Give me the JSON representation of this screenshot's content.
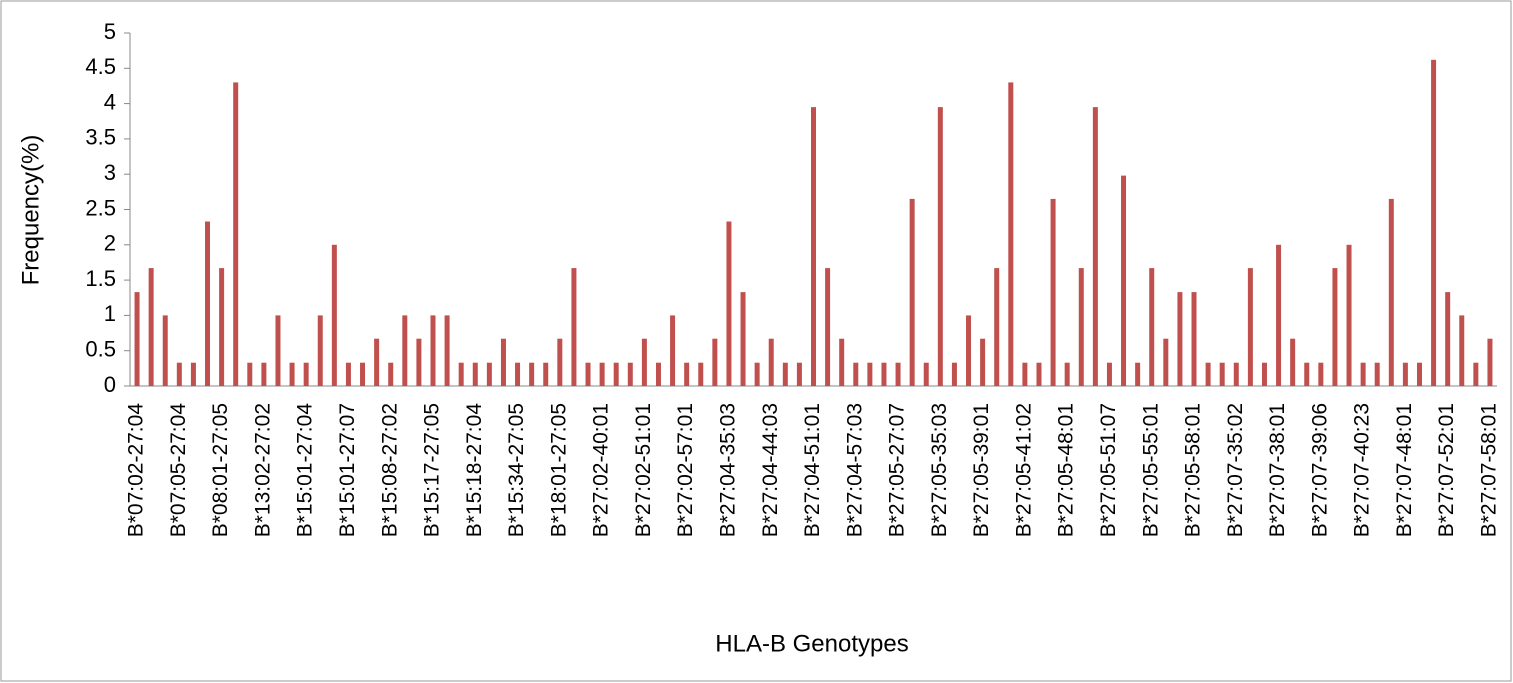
{
  "chart_data": {
    "type": "bar",
    "x_label": "HLA-B Genotypes",
    "y_label": "Frequency(%)",
    "categories": [
      "B*07:02-27:04",
      null,
      null,
      "B*07:05-27:04",
      null,
      null,
      "B*08:01-27:05",
      null,
      null,
      "B*13:02-27:02",
      null,
      null,
      "B*15:01-27:04",
      null,
      null,
      "B*15:01-27:07",
      null,
      null,
      "B*15:08-27:02",
      null,
      null,
      "B*15:17-27:05",
      null,
      null,
      "B*15:18-27:04",
      null,
      null,
      "B*15:34-27:05",
      null,
      null,
      "B*18:01-27:05",
      null,
      null,
      "B*27:02-40:01",
      null,
      null,
      "B*27:02-51:01",
      null,
      null,
      "B*27:02-57:01",
      null,
      null,
      "B*27:04-35:03",
      null,
      null,
      "B*27:04-44:03",
      null,
      null,
      "B*27:04-51:01",
      null,
      null,
      "B*27:04-57:03",
      null,
      null,
      "B*27:05-27:07",
      null,
      null,
      "B*27:05-35:03",
      null,
      null,
      "B*27:05-39:01",
      null,
      null,
      "B*27:05-41:02",
      null,
      null,
      "B*27:05-48:01",
      null,
      null,
      "B*27:05-51:07",
      null,
      null,
      "B*27:05-55:01",
      null,
      null,
      "B*27:05-58:01",
      null,
      null,
      "B*27:07-35:02",
      null,
      null,
      "B*27:07-38:01",
      null,
      null,
      "B*27:07-39:06",
      null,
      null,
      "B*27:07-40:23",
      null,
      null,
      "B*27:07-48:01",
      null,
      null,
      "B*27:07-52:01",
      null,
      null,
      "B*27:07-58:01"
    ],
    "values": [
      1.33,
      1.67,
      1,
      0.33,
      0.33,
      2.33,
      1.67,
      4.3,
      0.33,
      0.33,
      1,
      0.33,
      0.33,
      1,
      2,
      0.33,
      0.33,
      0.67,
      0.33,
      1,
      0.67,
      1,
      1,
      0.33,
      0.33,
      0.33,
      0.67,
      0.33,
      0.33,
      0.33,
      0.67,
      1.67,
      0.33,
      0.33,
      0.33,
      0.33,
      0.67,
      0.33,
      1,
      0.33,
      0.33,
      0.67,
      2.33,
      1.33,
      0.33,
      0.67,
      0.33,
      0.33,
      3.95,
      1.67,
      0.67,
      0.33,
      0.33,
      0.33,
      0.33,
      2.65,
      0.33,
      3.95,
      0.33,
      1,
      0.67,
      1.67,
      4.3,
      0.33,
      0.33,
      2.65,
      0.33,
      1.67,
      3.95,
      0.33,
      2.98,
      0.33,
      1.67,
      0.67,
      1.33,
      1.33,
      0.33,
      0.33,
      0.33,
      1.67,
      0.33,
      2,
      0.67,
      0.33,
      0.33,
      1.67,
      2,
      0.33,
      0.33,
      2.65,
      0.33,
      0.33,
      4.62,
      1.33,
      1,
      0.33,
      0.67
    ],
    "color": "#c0504d",
    "ylim": [
      0,
      5
    ],
    "yticks": [
      0,
      0.5,
      1,
      1.5,
      2,
      2.5,
      3,
      3.5,
      4,
      4.5,
      5
    ],
    "grid": false
  }
}
